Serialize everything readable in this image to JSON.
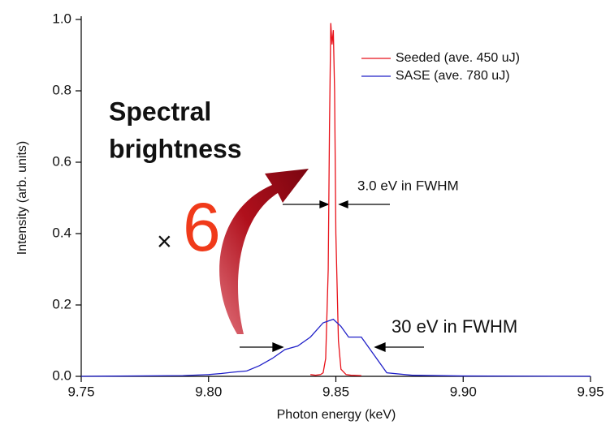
{
  "chart_data": {
    "type": "line",
    "x_label": "Photon energy (keV)",
    "y_label": "Intensity (arb. units)",
    "xlim": [
      9.75,
      9.95
    ],
    "ylim": [
      0,
      1
    ],
    "xticks": [
      9.75,
      {
        "value": 9.8,
        "label": "9.80"
      },
      9.85,
      {
        "value": 9.9,
        "label": "9.90"
      },
      9.95
    ],
    "yticks": [
      {
        "value": 0,
        "label": "0.0"
      },
      0.2,
      0.4,
      0.6,
      0.8,
      {
        "value": 1,
        "label": "1.0"
      }
    ],
    "legend": "upper right",
    "series": [
      {
        "name": "Seeded (ave. 450 uJ)",
        "color": "#e8121a",
        "x": [
          9.84,
          9.842,
          9.844,
          9.845,
          9.846,
          9.847,
          9.8475,
          9.848,
          9.8485,
          9.849,
          9.8495,
          9.85,
          9.851,
          9.852,
          9.854,
          9.856,
          9.86
        ],
        "values": [
          0.005,
          0.003,
          0.005,
          0.01,
          0.05,
          0.3,
          0.7,
          0.99,
          0.93,
          0.97,
          0.8,
          0.4,
          0.1,
          0.02,
          0.005,
          0.003,
          0.002
        ]
      },
      {
        "name": "SASE (ave. 780 uJ)",
        "color": "#2020c8",
        "x": [
          9.75,
          9.79,
          9.8,
          9.805,
          9.81,
          9.815,
          9.82,
          9.825,
          9.83,
          9.835,
          9.84,
          9.845,
          9.849,
          9.852,
          9.855,
          9.86,
          9.865,
          9.87,
          9.88,
          9.9,
          9.95
        ],
        "values": [
          0,
          0.002,
          0.005,
          0.008,
          0.012,
          0.015,
          0.03,
          0.05,
          0.075,
          0.085,
          0.11,
          0.15,
          0.16,
          0.14,
          0.11,
          0.11,
          0.06,
          0.01,
          0.003,
          0.001,
          0
        ]
      }
    ],
    "annotations": {
      "brightness_line1": "Spectral",
      "brightness_line2": "brightness",
      "times": "×",
      "factor": "6",
      "seeded_width": "3.0 eV in FWHM",
      "sase_width": "30 eV in FWHM"
    }
  }
}
